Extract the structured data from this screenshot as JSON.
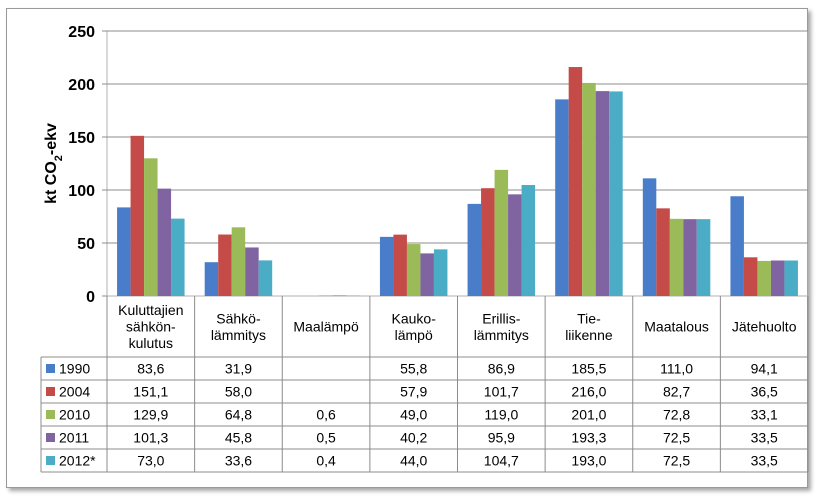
{
  "chart_data": {
    "type": "bar",
    "ylabel": "kt CO",
    "ylabel_sub": "2",
    "ylabel_suffix": "-ekv",
    "ylim": [
      0,
      250
    ],
    "yticks": [
      "0",
      "50",
      "100",
      "150",
      "200",
      "250"
    ],
    "grid": true,
    "categories": [
      [
        "Kuluttajien",
        "sähkön-",
        "kulutus"
      ],
      [
        "Sähkö-",
        "lämmitys"
      ],
      [
        "Maalämpö"
      ],
      [
        "Kauko-",
        "lämpö"
      ],
      [
        "Erillis-",
        "lämmitys"
      ],
      [
        "Tie-",
        "liikenne"
      ],
      [
        "Maatalous"
      ],
      [
        "Jätehuolto"
      ]
    ],
    "series": [
      {
        "name": "1990",
        "color": "#4a7dc9",
        "values": [
          83.6,
          31.9,
          null,
          55.8,
          86.9,
          185.5,
          111.0,
          94.1
        ],
        "labels": [
          "83,6",
          "31,9",
          "",
          "55,8",
          "86,9",
          "185,5",
          "111,0",
          "94,1"
        ]
      },
      {
        "name": "2004",
        "color": "#c44b47",
        "values": [
          151.1,
          58.0,
          null,
          57.9,
          101.7,
          216.0,
          82.7,
          36.5
        ],
        "labels": [
          "151,1",
          "58,0",
          "",
          "57,9",
          "101,7",
          "216,0",
          "82,7",
          "36,5"
        ]
      },
      {
        "name": "2010",
        "color": "#9bbb59",
        "values": [
          129.9,
          64.8,
          0.6,
          49.0,
          119.0,
          201.0,
          72.8,
          33.1
        ],
        "labels": [
          "129,9",
          "64,8",
          "0,6",
          "49,0",
          "119,0",
          "201,0",
          "72,8",
          "33,1"
        ]
      },
      {
        "name": "2011",
        "color": "#8064a2",
        "values": [
          101.3,
          45.8,
          0.5,
          40.2,
          95.9,
          193.3,
          72.5,
          33.5
        ],
        "labels": [
          "101,3",
          "45,8",
          "0,5",
          "40,2",
          "95,9",
          "193,3",
          "72,5",
          "33,5"
        ]
      },
      {
        "name": "2012*",
        "color": "#4bacc6",
        "values": [
          73.0,
          33.6,
          0.4,
          44.0,
          104.7,
          193.0,
          72.5,
          33.5
        ],
        "labels": [
          "73,0",
          "33,6",
          "0,4",
          "44,0",
          "104,7",
          "193,0",
          "72,5",
          "33,5"
        ]
      }
    ]
  }
}
